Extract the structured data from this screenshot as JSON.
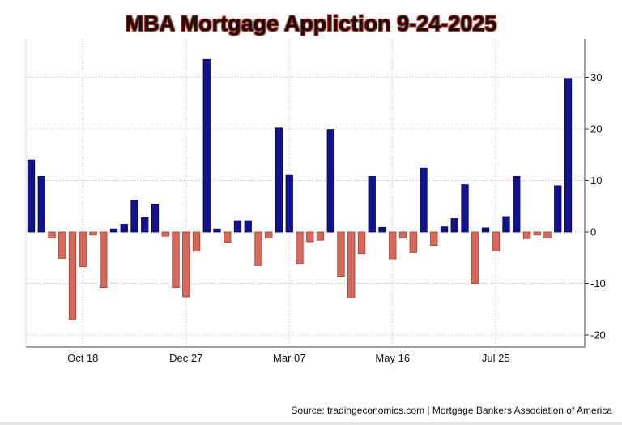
{
  "chart_data": {
    "type": "bar",
    "title": "MBA Mortgage Appliction 9-24-2025",
    "xlabel": "",
    "ylabel": "",
    "ylim": [
      -22,
      37
    ],
    "yticks": [
      -20,
      -10,
      0,
      10,
      20,
      30
    ],
    "xtick_labels": [
      {
        "label": "Oct 18",
        "index": 5
      },
      {
        "label": "Dec 27",
        "index": 15
      },
      {
        "label": "Mar 07",
        "index": 25
      },
      {
        "label": "May 16",
        "index": 35
      },
      {
        "label": "Jul 25",
        "index": 45
      }
    ],
    "values": [
      14,
      10.8,
      -1.2,
      -5.1,
      -17,
      -6.7,
      -0.6,
      -10.8,
      0.6,
      1.5,
      6.2,
      2.8,
      5.4,
      -0.8,
      -10.8,
      -12.6,
      -3.7,
      33.5,
      0.6,
      -2,
      2.2,
      2.2,
      -6.5,
      -1.2,
      20.2,
      11,
      -6.2,
      -1.9,
      -1.6,
      19.9,
      -8.6,
      -12.8,
      -4.2,
      10.8,
      0.9,
      -5.2,
      -1.2,
      -4,
      12.4,
      -2.6,
      1,
      2.6,
      9.2,
      -10,
      0.8,
      -3.7,
      3,
      10.8,
      -1.3,
      -0.6,
      -1.2,
      9,
      29.8
    ],
    "grid": true,
    "y_axis_side": "right",
    "colors": {
      "positive": "#12128c",
      "negative": "#d46a5c",
      "negative_edge": "#a8382c",
      "positive_edge": "#0a0a5c"
    }
  },
  "source": "Source: tradingeconomics.com | Mortgage Bankers Association of America"
}
